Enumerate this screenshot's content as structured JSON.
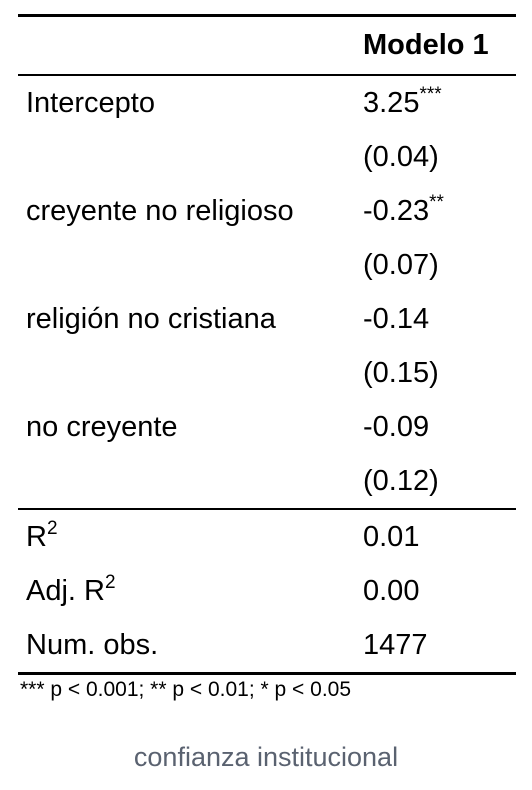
{
  "table": {
    "model_header": "Modelo 1",
    "coefficients": [
      {
        "label": "Intercepto",
        "estimate": "3.25",
        "stars": "***",
        "se": "(0.04)"
      },
      {
        "label": "creyente no religioso",
        "estimate": "-0.23",
        "stars": "**",
        "se": "(0.07)"
      },
      {
        "label": "religión no cristiana",
        "estimate": "-0.14",
        "stars": "",
        "se": "(0.15)"
      },
      {
        "label": "no creyente",
        "estimate": "-0.09",
        "stars": "",
        "se": "(0.12)"
      }
    ],
    "stats": [
      {
        "label_base": "R",
        "label_sup": "2",
        "value": "0.01"
      },
      {
        "label_base": "Adj. R",
        "label_sup": "2",
        "value": "0.00"
      },
      {
        "label_base": "Num. obs.",
        "label_sup": "",
        "value": "1477"
      }
    ],
    "note": "*** p < 0.001; ** p < 0.01; * p < 0.05"
  },
  "caption": "confianza institucional"
}
